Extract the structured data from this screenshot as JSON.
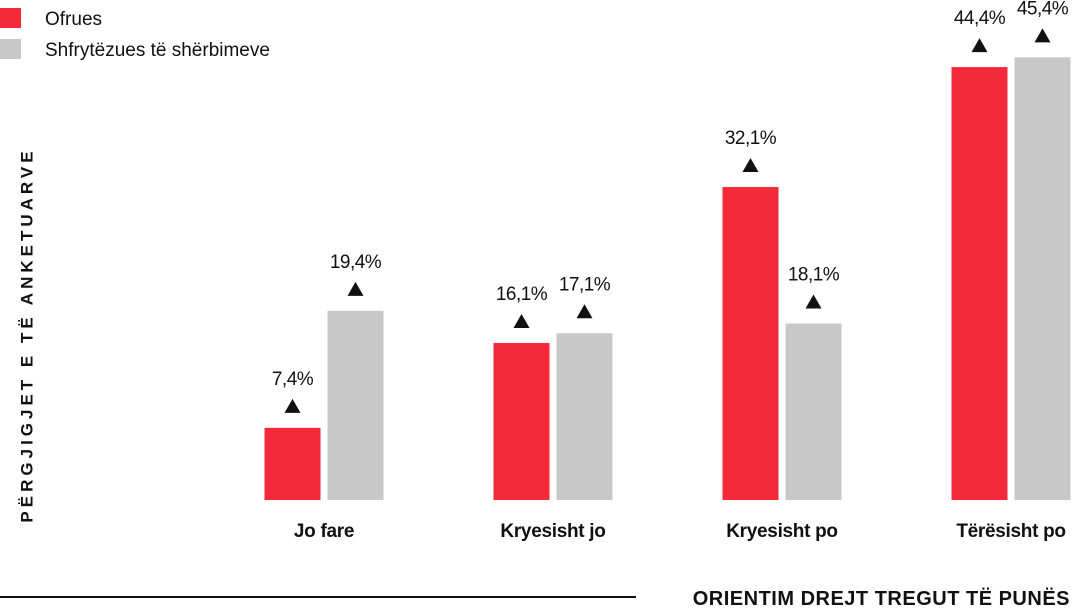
{
  "chart_data": {
    "type": "bar",
    "x_label": "ORIENTIM DREJT TREGUT TË PUNËS",
    "y_label": "PËRGJIGJET E TË ANKETUARVE",
    "categories": [
      "Jo fare",
      "Kryesisht jo",
      "Kryesisht po",
      "Tërësisht po"
    ],
    "series": [
      {
        "name": "Ofrues",
        "color": "#f42a3a",
        "values": [
          7.4,
          16.1,
          32.1,
          44.4
        ],
        "value_labels": [
          "7,4%",
          "16,1%",
          "32,1%",
          "44,4%"
        ]
      },
      {
        "name": "Shfrytëzues të shërbimeve",
        "color": "#c8c8c8",
        "values": [
          19.4,
          17.1,
          18.1,
          45.4
        ],
        "value_labels": [
          "19,4%",
          "17,1%",
          "18,1%",
          "45,4%"
        ]
      }
    ],
    "legend": "top-left",
    "grid": false
  }
}
